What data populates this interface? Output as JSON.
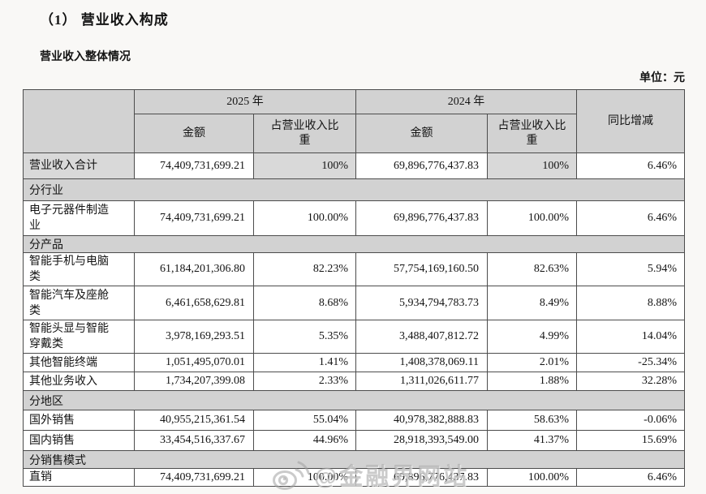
{
  "page": {
    "title": "（1） 营业收入构成",
    "subtitle": "营业收入整体情况",
    "unit_label": "单位：元"
  },
  "colors": {
    "header_bg": "#d2d2d2",
    "section_bg": "#d2d2d2",
    "shaded_cell_bg": "#d9d9d9",
    "border": "#4c4c4c",
    "page_bg": "#f9f8f6",
    "watermark": "#aaaaaa"
  },
  "table": {
    "header": {
      "year_2025": "2025 年",
      "year_2024": "2024 年",
      "amount": "金额",
      "share": "占营业收入比重",
      "yoy": "同比增减"
    },
    "rows": [
      {
        "type": "data",
        "shaded": true,
        "label": "营业收入合计",
        "a2025": "74,409,731,699.21",
        "p2025": "100%",
        "a2024": "69,896,776,437.83",
        "p2024": "100%",
        "yoy": "6.46%"
      },
      {
        "type": "section",
        "label": "分行业"
      },
      {
        "type": "data",
        "label": "电子元器件制造业",
        "a2025": "74,409,731,699.21",
        "p2025": "100.00%",
        "a2024": "69,896,776,437.83",
        "p2024": "100.00%",
        "yoy": "6.46%"
      },
      {
        "type": "section",
        "label": "分产品"
      },
      {
        "type": "data",
        "label": "智能手机与电脑类",
        "a2025": "61,184,201,306.80",
        "p2025": "82.23%",
        "a2024": "57,754,169,160.50",
        "p2024": "82.63%",
        "yoy": "5.94%"
      },
      {
        "type": "data",
        "label": "智能汽车及座舱类",
        "a2025": "6,461,658,629.81",
        "p2025": "8.68%",
        "a2024": "5,934,794,783.73",
        "p2024": "8.49%",
        "yoy": "8.88%"
      },
      {
        "type": "data",
        "label": "智能头显与智能穿戴类",
        "a2025": "3,978,169,293.51",
        "p2025": "5.35%",
        "a2024": "3,488,407,812.72",
        "p2024": "4.99%",
        "yoy": "14.04%"
      },
      {
        "type": "data",
        "label": "其他智能终端",
        "a2025": "1,051,495,070.01",
        "p2025": "1.41%",
        "a2024": "1,408,378,069.11",
        "p2024": "2.01%",
        "yoy": "-25.34%"
      },
      {
        "type": "data",
        "label": "其他业务收入",
        "a2025": "1,734,207,399.08",
        "p2025": "2.33%",
        "a2024": "1,311,026,611.77",
        "p2024": "1.88%",
        "yoy": "32.28%"
      },
      {
        "type": "section",
        "label": "分地区"
      },
      {
        "type": "data",
        "label": "国外销售",
        "a2025": "40,955,215,361.54",
        "p2025": "55.04%",
        "a2024": "40,978,382,888.83",
        "p2024": "58.63%",
        "yoy": "-0.06%"
      },
      {
        "type": "data",
        "label": "国内销售",
        "a2025": "33,454,516,337.67",
        "p2025": "44.96%",
        "a2024": "28,918,393,549.00",
        "p2024": "41.37%",
        "yoy": "15.69%"
      },
      {
        "type": "section",
        "label": "分销售模式"
      },
      {
        "type": "data",
        "label": "直销",
        "a2025": "74,409,731,699.21",
        "p2025": "100.00%",
        "a2024": "69,896,776,437.83",
        "p2024": "100.00%",
        "yoy": "6.46%"
      }
    ]
  },
  "watermark": {
    "icon": "weibo-icon",
    "text": "@金融界网站"
  }
}
